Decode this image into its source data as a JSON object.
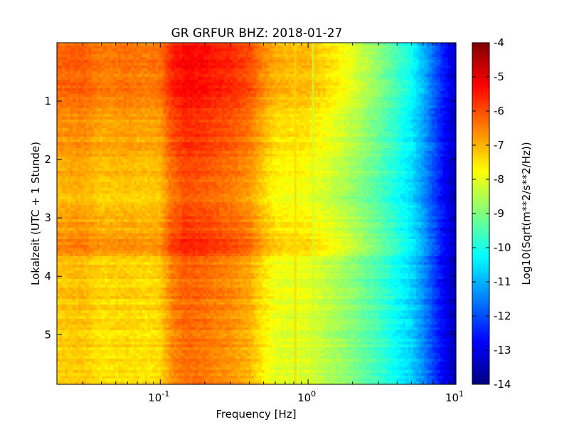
{
  "chart_data": {
    "type": "heatmap",
    "title": "GR GRFUR BHZ: 2018-01-27",
    "xlabel": "Frequency [Hz]",
    "ylabel": "Lokalzeit (UTC + 1 Stunde)",
    "xscale": "log",
    "xlim": [
      0.02,
      10
    ],
    "x_ticks": [
      {
        "value": 0.1,
        "base": "10",
        "exp": "-1"
      },
      {
        "value": 1,
        "base": "10",
        "exp": "0"
      },
      {
        "value": 10,
        "base": "10",
        "exp": "1"
      }
    ],
    "ylim": [
      5.85,
      0
    ],
    "y_ticks": [
      "1",
      "2",
      "3",
      "4",
      "5"
    ],
    "colorbar": {
      "label": "Log10(Sqrt(m**2/s**2/Hz))",
      "range": [
        -14,
        -4
      ],
      "ticks": [
        "-14",
        "-13",
        "-12",
        "-11",
        "-10",
        "-9",
        "-8",
        "-7",
        "-6",
        "-5",
        "-4"
      ],
      "colormap": "jet"
    },
    "spectrum_profile": {
      "frequency_hz": [
        0.02,
        0.03,
        0.04,
        0.06,
        0.08,
        0.1,
        0.12,
        0.15,
        0.2,
        0.3,
        0.4,
        0.5,
        0.6,
        0.8,
        1.0,
        1.5,
        2.0,
        3.0,
        4.0,
        5.0,
        6.0,
        8.0,
        10.0
      ],
      "log10_amplitude": [
        -7.1,
        -7.0,
        -7.3,
        -7.2,
        -7.3,
        -7.2,
        -6.4,
        -6.1,
        -6.2,
        -6.5,
        -6.8,
        -7.4,
        -7.8,
        -7.9,
        -7.9,
        -8.4,
        -8.8,
        -9.5,
        -10.1,
        -10.6,
        -11.3,
        -12.6,
        -13.5
      ]
    },
    "hour_offsets": {
      "hour": [
        0.0,
        0.8,
        1.3,
        2.0,
        2.8,
        3.5,
        3.8,
        4.5,
        5.2,
        5.85
      ],
      "delta": [
        0.8,
        0.8,
        0.5,
        0.2,
        0.0,
        0.6,
        -0.1,
        -0.1,
        -0.2,
        -0.2
      ]
    },
    "line_features_hz": [
      0.82,
      1.08
    ],
    "grid": false
  }
}
